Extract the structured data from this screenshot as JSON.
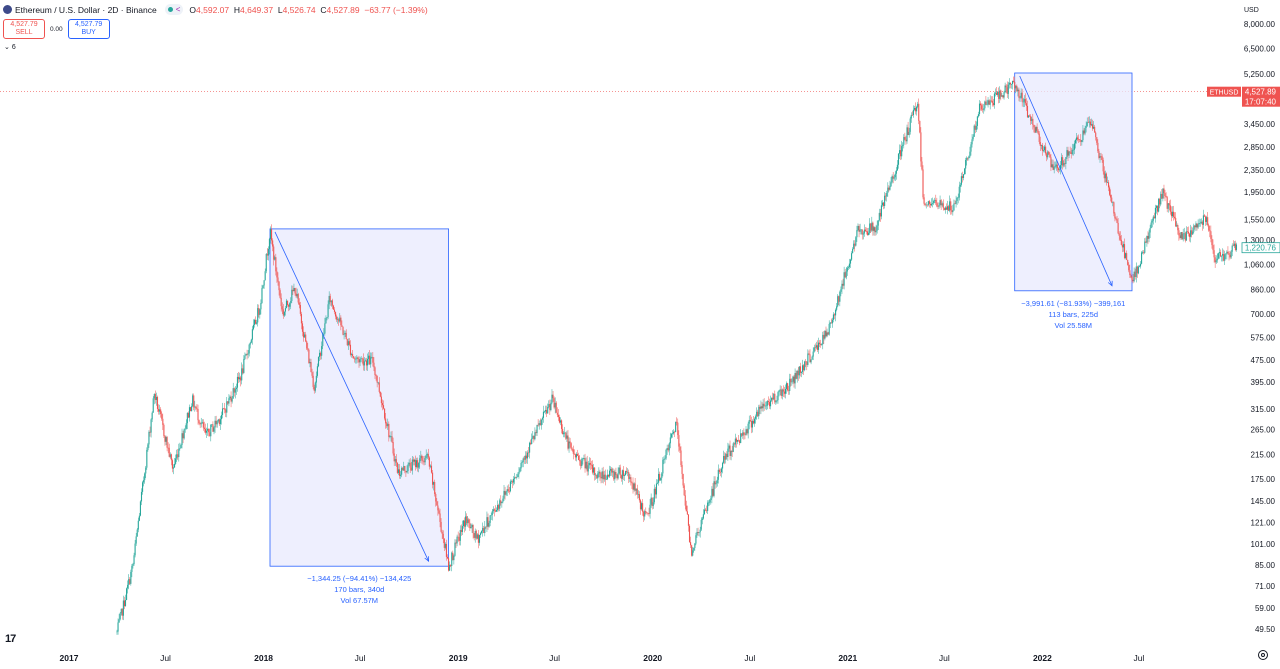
{
  "header": {
    "symbol_title": "Ethereum / U.S. Dollar · 2D · Binance",
    "ohlc": [
      {
        "k": "O",
        "v": "4,592.07"
      },
      {
        "k": "H",
        "v": "4,649.37"
      },
      {
        "k": "L",
        "v": "4,526.74"
      },
      {
        "k": "C",
        "v": "4,527.89"
      }
    ],
    "change": "−63.77 (−1.39%)"
  },
  "trade": {
    "sell_price": "4,527.79",
    "sell_label": "SELL",
    "spread": "0.00",
    "buy_price": "4,527.79",
    "buy_label": "BUY"
  },
  "indicators_toggle": "6",
  "logo_text": "17",
  "price_axis": {
    "currency": "USD",
    "ticks": [
      "8,000.00",
      "6,500.00",
      "5,250.00",
      "3,450.00",
      "2,850.00",
      "2,350.00",
      "1,950.00",
      "1,550.00",
      "1,300.00",
      "1,060.00",
      "860.00",
      "700.00",
      "575.00",
      "475.00",
      "395.00",
      "315.00",
      "265.00",
      "215.00",
      "175.00",
      "145.00",
      "121.00",
      "101.00",
      "85.00",
      "71.00",
      "59.00",
      "49.50"
    ],
    "symbol_tag": "ETHUSD",
    "last_price": "4,527.89",
    "countdown": "17:07:40",
    "marker_price": "1,220.76"
  },
  "colors": {
    "up": "#26a69a",
    "down": "#ef5350",
    "measure": "#2962ff",
    "measure_fill": "#e8eafd"
  },
  "chart_data": {
    "type": "candlestick",
    "y_scale": "log",
    "ylim": [
      45,
      9000
    ],
    "x_labels": [
      "2017",
      "Jul",
      "2018",
      "Jul",
      "2019",
      "Jul",
      "2020",
      "Jul",
      "2021",
      "Jul",
      "2022",
      "Jul"
    ],
    "close_path": [
      [
        "2017-04-01",
        48
      ],
      [
        "2017-05-01",
        85
      ],
      [
        "2017-06-10",
        360
      ],
      [
        "2017-07-15",
        190
      ],
      [
        "2017-08-20",
        340
      ],
      [
        "2017-09-15",
        250
      ],
      [
        "2017-10-15",
        300
      ],
      [
        "2017-11-20",
        420
      ],
      [
        "2017-12-25",
        750
      ],
      [
        "2018-01-13",
        1400
      ],
      [
        "2018-02-06",
        700
      ],
      [
        "2018-03-01",
        870
      ],
      [
        "2018-04-06",
        380
      ],
      [
        "2018-05-05",
        800
      ],
      [
        "2018-06-20",
        480
      ],
      [
        "2018-07-25",
        470
      ],
      [
        "2018-09-10",
        185
      ],
      [
        "2018-11-05",
        210
      ],
      [
        "2018-12-14",
        84
      ],
      [
        "2019-01-15",
        125
      ],
      [
        "2019-02-05",
        105
      ],
      [
        "2019-04-15",
        175
      ],
      [
        "2019-06-26",
        340
      ],
      [
        "2019-08-01",
        220
      ],
      [
        "2019-09-20",
        180
      ],
      [
        "2019-11-15",
        185
      ],
      [
        "2019-12-20",
        125
      ],
      [
        "2020-02-14",
        280
      ],
      [
        "2020-03-13",
        95
      ],
      [
        "2020-05-15",
        210
      ],
      [
        "2020-07-25",
        320
      ],
      [
        "2020-09-10",
        380
      ],
      [
        "2020-11-25",
        600
      ],
      [
        "2021-01-20",
        1400
      ],
      [
        "2021-02-23",
        1450
      ],
      [
        "2021-03-15",
        1900
      ],
      [
        "2021-05-12",
        4200
      ],
      [
        "2021-05-23",
        1800
      ],
      [
        "2021-07-20",
        1700
      ],
      [
        "2021-09-05",
        3900
      ],
      [
        "2021-11-10",
        4850
      ],
      [
        "2022-01-24",
        2300
      ],
      [
        "2022-04-03",
        3500
      ],
      [
        "2022-06-18",
        900
      ],
      [
        "2022-08-14",
        1950
      ],
      [
        "2022-09-20",
        1300
      ],
      [
        "2022-11-05",
        1600
      ],
      [
        "2022-11-22",
        1100
      ],
      [
        "2022-12-31",
        1220
      ]
    ],
    "last_close": 4527.89,
    "measurements": [
      {
        "from": "2018-01-13",
        "to": "2018-12-14",
        "high": 1430,
        "low": 84,
        "line1": "−1,344.25 (−94.41%) −134,425",
        "line2": "170 bars, 340d",
        "line3": "Vol 67.57M"
      },
      {
        "from": "2021-11-10",
        "to": "2022-06-18",
        "high": 5300,
        "low": 850,
        "line1": "−3,991.61 (−81.93%) −399,161",
        "line2": "113 bars, 225d",
        "line3": "Vol 25.58M"
      }
    ]
  }
}
